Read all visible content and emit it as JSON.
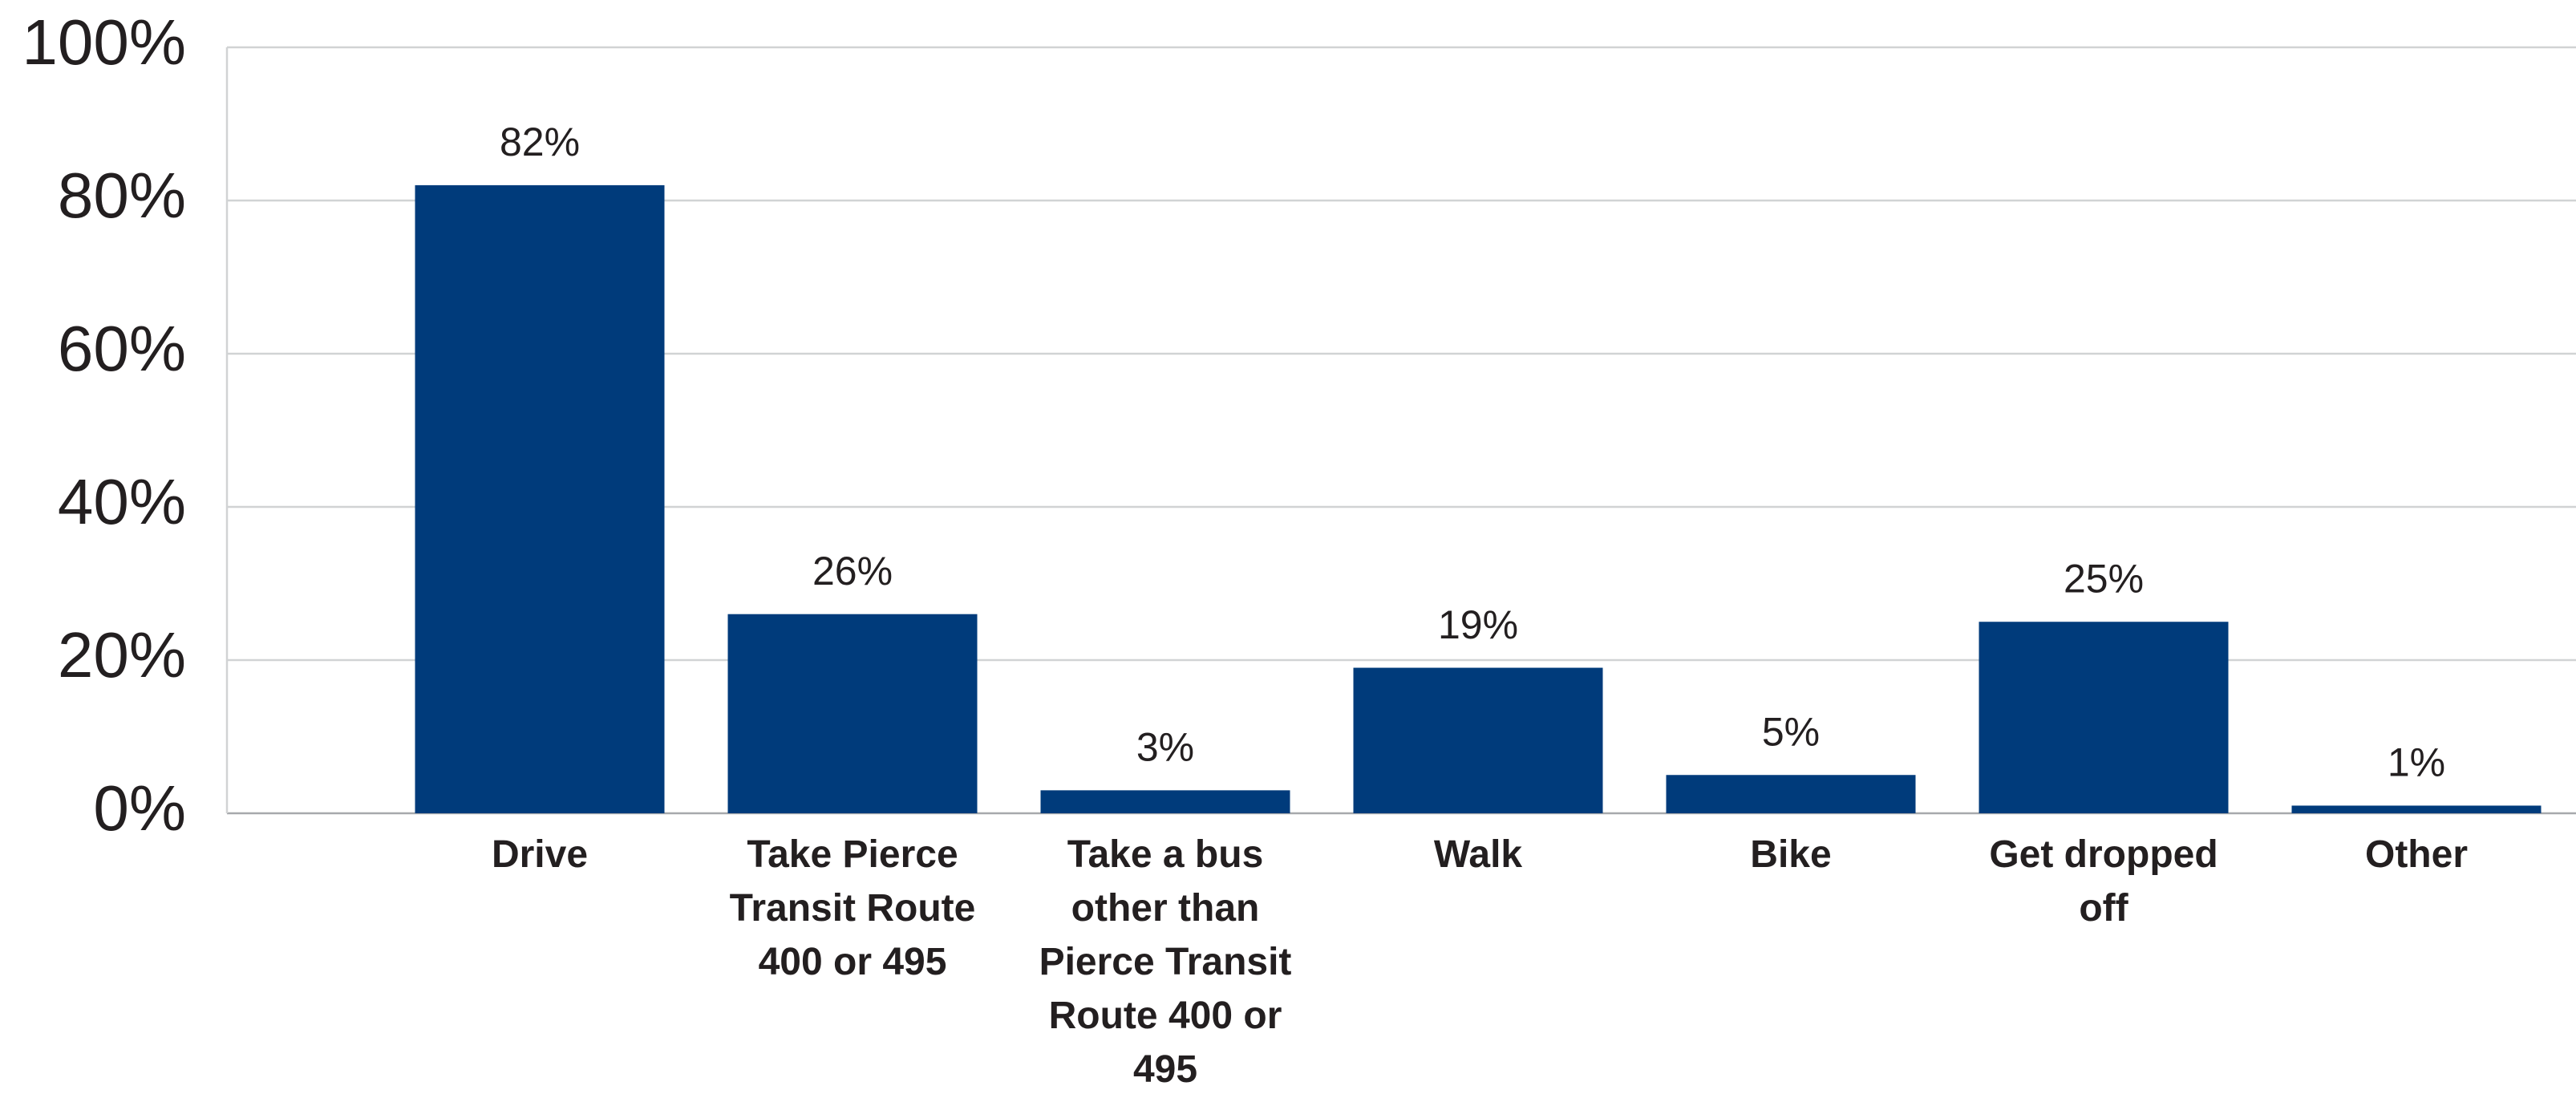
{
  "chart_data": {
    "type": "bar",
    "categories": [
      "Drive",
      "Take Pierce Transit Route 400 or 495",
      "Take a bus other than Pierce Transit Route 400 or 495",
      "Walk",
      "Bike",
      "Get dropped off",
      "Other"
    ],
    "values": [
      82,
      26,
      3,
      19,
      5,
      25,
      1
    ],
    "value_labels": [
      "82%",
      "26%",
      "3%",
      "19%",
      "5%",
      "25%",
      "1%"
    ],
    "color": "#003b7b",
    "ylim": [
      0,
      100
    ],
    "yticks": [
      {
        "value": 0,
        "label": "0%"
      },
      {
        "value": 20,
        "label": "20%"
      },
      {
        "value": 40,
        "label": "40%"
      },
      {
        "value": 60,
        "label": "60%"
      },
      {
        "value": 80,
        "label": "80%"
      },
      {
        "value": 100,
        "label": "100%"
      }
    ],
    "grid": true
  }
}
